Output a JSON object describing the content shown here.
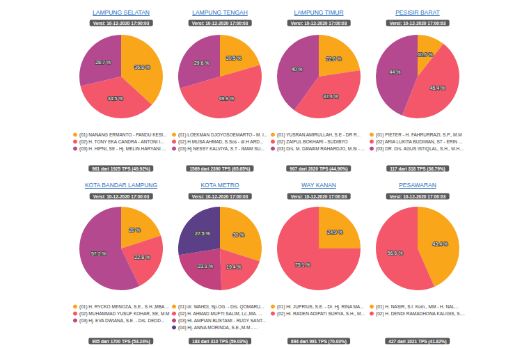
{
  "chart_data": [
    {
      "type": "pie",
      "title": "LAMPUNG SELATAN",
      "subtitle": "Versi: 10-12-2020 17:00:03",
      "categories": [
        "(01) NANANG ERMANTO - PANDU KESI...",
        "(02) H. TONY EKA CANDRA - ANTONI I...",
        "(03) H. HIPNI, SE - Hj. MELIN HARYANI ..."
      ],
      "values": [
        36.8,
        34.5,
        28.7
      ],
      "value_labels": [
        "36.8 %",
        "34.5 %",
        "28.7 %"
      ],
      "colors": [
        "#f9a61a",
        "#f4566a",
        "#b44990"
      ],
      "data_labels": true,
      "legend": "bottom",
      "annotations": [
        "961 dari 1925 TPS (49.92%)"
      ]
    },
    {
      "type": "pie",
      "title": "LAMPUNG TENGAH",
      "subtitle": "Versi: 10-12-2020 17:00:03",
      "categories": [
        "(01) LOEKMAN DJOYOSOEMARTO - M. I...",
        "(02) H MUSA AHMAD, S.Sos - dr.H ARD...",
        "(03) Hj NESSY KALVIYA, S.T - IMAM SU..."
      ],
      "values": [
        20.5,
        49.9,
        29.6
      ],
      "value_labels": [
        "20.5 %",
        "49.9 %",
        "29.6 %"
      ],
      "colors": [
        "#f9a61a",
        "#f4566a",
        "#b44990"
      ],
      "data_labels": true,
      "legend": "bottom",
      "annotations": [
        "1569 dari 2390 TPS (65.65%)"
      ]
    },
    {
      "type": "pie",
      "title": "LAMPUNG TIMUR",
      "subtitle": "Versi: 10-12-2020 17:00:03",
      "categories": [
        "(01) YUSRAN AMIRULLAH, S.E - DR R...",
        "(02) ZAIFUL BOKHARI - SUDIBYO",
        "(03) Drs. M. DAWAM RAHARDJO, M.Si - ..."
      ],
      "values": [
        22.6,
        37.4,
        40
      ],
      "value_labels": [
        "22.6 %",
        "37.4 %",
        "40 %"
      ],
      "colors": [
        "#f9a61a",
        "#f4566a",
        "#b44990"
      ],
      "data_labels": true,
      "legend": "bottom",
      "annotations": [
        "907 dari 2020 TPS (44.90%)"
      ]
    },
    {
      "type": "pie",
      "title": "PESISIR BARAT",
      "subtitle": "Versi: 10-12-2020 17:00:03",
      "categories": [
        "(01) PIETER - H. FAHRURRAZI, S.P., M.M",
        "(02) ARIA LUKITA BUDIWAN, ST - ERIN ...",
        "(03) DR. Drs. AGUS ISTIQLAL, S.H., M.H..."
      ],
      "values": [
        10.6,
        45.4,
        44
      ],
      "value_labels": [
        "10.6 %",
        "45.4 %",
        "44 %"
      ],
      "colors": [
        "#f9a61a",
        "#f4566a",
        "#b44990"
      ],
      "data_labels": true,
      "legend": "bottom",
      "annotations": [
        "117 dari 318 TPS (36.79%)"
      ]
    },
    {
      "type": "pie",
      "title": "KOTA BANDAR LAMPUNG",
      "subtitle": "Versi: 10-12-2020 17:00:03",
      "categories": [
        "(01) H. RYCKO MENOZA, S.E., S.H.,MBA ...",
        "(02) MUHAMMAD YUSUF KOHAR, SE, M.M ...",
        "(03) Hj. EVA DWIANA, S.E. - Drs. DEDD..."
      ],
      "values": [
        20,
        22.8,
        57.2
      ],
      "value_labels": [
        "20 %",
        "22.8 %",
        "57.2 %"
      ],
      "colors": [
        "#f9a61a",
        "#f4566a",
        "#b44990"
      ],
      "data_labels": true,
      "legend": "bottom",
      "annotations": [
        "905 dari 1700 TPS (53.24%)"
      ]
    },
    {
      "type": "pie",
      "title": "KOTA METRO",
      "subtitle": "Versi: 10-12-2020 17:00:03",
      "categories": [
        "(01) dr. WAHDI, Sp.OG. - Drs. QOMARU...",
        "(02) H. AHMAD MUFTI SALIM, Lc.,MA. ...",
        "(03) Hi. AMPIAN BUSTAMI - RUDY SANT...",
        "(04) Hj. ANNA MORINDA, S.E.,M.M - ..."
      ],
      "values": [
        30,
        19.4,
        23.1,
        27.5
      ],
      "value_labels": [
        "30 %",
        "19.4 %",
        "23.1 %",
        "27.5 %"
      ],
      "colors": [
        "#f9a61a",
        "#f4566a",
        "#c2427f",
        "#5b3f87"
      ],
      "data_labels": true,
      "legend": "bottom",
      "annotations": [
        "183 dari 310 TPS (59.03%)"
      ]
    },
    {
      "type": "pie",
      "title": "WAY KANAN",
      "subtitle": "Versi: 10-12-2020 17:00:03",
      "categories": [
        "(01) Hi. JUPRIUS, S.E. - Dr. Hj. RINA MA...",
        "(02) Hi. RADEN ADIPATI SURYA, S.H., M..."
      ],
      "values": [
        24.9,
        75.1
      ],
      "value_labels": [
        "24.9 %",
        "75.1 %"
      ],
      "colors": [
        "#f9a61a",
        "#f4566a"
      ],
      "data_labels": true,
      "legend": "bottom",
      "annotations": [
        "694 dari 991 TPS (70.03%)"
      ]
    },
    {
      "type": "pie",
      "title": "PESAWARAN",
      "subtitle": "Versi: 10-12-2020 17:00:03",
      "categories": [
        "(01) H. NASIR, S.I. Kom., MM - H. NAL...",
        "(02) H. DENDI RAMADHONA KALIGIS, S...."
      ],
      "values": [
        43.4,
        56.6
      ],
      "value_labels": [
        "43.4 %",
        "56.6 %"
      ],
      "colors": [
        "#f9a61a",
        "#f4566a"
      ],
      "data_labels": true,
      "legend": "bottom",
      "annotations": [
        "427 dari 1021 TPS (41.82%)"
      ]
    }
  ]
}
